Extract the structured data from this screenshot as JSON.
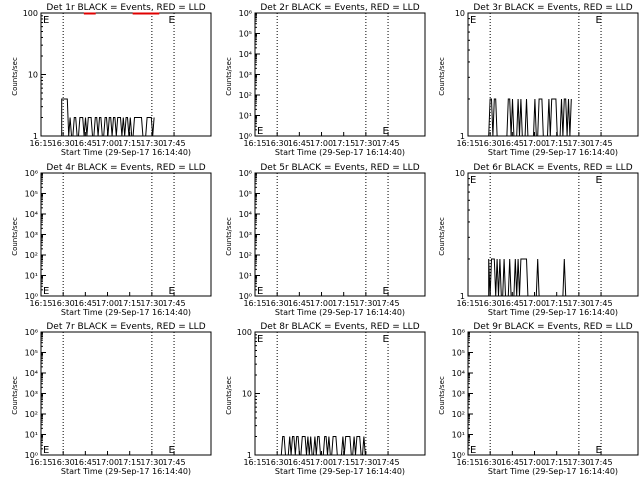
{
  "panel_title_suffix": "BLACK = Events, RED = LLD",
  "ylabel": "Counts/sec",
  "xlabel": "Start Time (29-Sep-17 16:14:40)",
  "x_tick_labels": [
    "16:15",
    "16:30",
    "16:45",
    "17:00",
    "17:15",
    "17:30",
    "17:45"
  ],
  "marker_char": "E",
  "colors": {
    "events": "#000000",
    "lld": "#e00000",
    "axis": "#000000"
  },
  "chart_data": [
    {
      "type": "line",
      "title": "Det 1r",
      "scale": "log",
      "ylim": [
        1,
        100
      ],
      "y_tick_labels": [
        "1",
        "10",
        "100"
      ],
      "dotted_x": [
        "16:30",
        "17:30",
        "17:45"
      ],
      "markers_y": [
        100,
        100
      ],
      "series": [
        {
          "role": "events",
          "style": "spiky",
          "x_start": "16:29",
          "x_end": "17:32",
          "base": 1,
          "level": 2,
          "peak": 4,
          "density": 0.5
        },
        {
          "role": "lld",
          "segments": [
            {
              "from": "16:44",
              "to": "16:52",
              "y": 100
            },
            {
              "from": "17:17",
              "to": "17:35",
              "y": 100
            }
          ]
        }
      ]
    },
    {
      "type": "line",
      "title": "Det 2r",
      "scale": "log",
      "ylim": [
        1,
        1000000
      ],
      "y_tick_labels": [
        "10⁰",
        "10¹",
        "10²",
        "10³",
        "10⁴",
        "10⁵",
        "10⁶"
      ],
      "dotted_x": [
        "16:30",
        "17:30",
        "17:45"
      ],
      "markers_y": [
        1.5,
        1.5
      ],
      "series": []
    },
    {
      "type": "line",
      "title": "Det 3r",
      "scale": "log",
      "ylim": [
        1,
        10
      ],
      "y_tick_labels": [
        "1",
        "10"
      ],
      "dotted_x": [
        "16:30",
        "17:30",
        "17:45"
      ],
      "markers_y": [
        10,
        10
      ],
      "series": [
        {
          "role": "events",
          "style": "sparse",
          "x_start": "16:29",
          "x_end": "17:25",
          "base": 1,
          "level": 2,
          "density": 0.35
        }
      ]
    },
    {
      "type": "line",
      "title": "Det 4r",
      "scale": "log",
      "ylim": [
        1,
        1000000
      ],
      "y_tick_labels": [
        "10⁰",
        "10¹",
        "10²",
        "10³",
        "10⁴",
        "10⁵",
        "10⁶"
      ],
      "dotted_x": [
        "16:30",
        "17:30",
        "17:45"
      ],
      "markers_y": [
        1.5,
        1.5
      ],
      "series": []
    },
    {
      "type": "line",
      "title": "Det 5r",
      "scale": "log",
      "ylim": [
        1,
        1000000
      ],
      "y_tick_labels": [
        "10⁰",
        "10¹",
        "10²",
        "10³",
        "10⁴",
        "10⁵",
        "10⁶"
      ],
      "dotted_x": [
        "16:30",
        "17:30",
        "17:45"
      ],
      "markers_y": [
        1.5,
        1.5
      ],
      "series": []
    },
    {
      "type": "line",
      "title": "Det 6r",
      "scale": "log",
      "ylim": [
        1,
        10
      ],
      "y_tick_labels": [
        "1",
        "10"
      ],
      "dotted_x": [
        "16:30",
        "17:30",
        "17:45"
      ],
      "markers_y": [
        10,
        10
      ],
      "series": [
        {
          "role": "events",
          "style": "sparse",
          "x_start": "16:29",
          "x_end": "17:25",
          "base": 1,
          "level": 2,
          "density": 0.35
        }
      ]
    },
    {
      "type": "line",
      "title": "Det 7r",
      "scale": "log",
      "ylim": [
        1,
        1000000
      ],
      "y_tick_labels": [
        "10⁰",
        "10¹",
        "10²",
        "10³",
        "10⁴",
        "10⁵",
        "10⁶"
      ],
      "dotted_x": [
        "16:30",
        "17:30",
        "17:45"
      ],
      "markers_y": [
        1.5,
        1.5
      ],
      "series": []
    },
    {
      "type": "line",
      "title": "Det 8r",
      "scale": "log",
      "ylim": [
        1,
        100
      ],
      "y_tick_labels": [
        "1",
        "10",
        "100"
      ],
      "dotted_x": [
        "16:30",
        "17:30",
        "17:45"
      ],
      "markers_y": [
        100,
        100
      ],
      "series": [
        {
          "role": "events",
          "style": "sparse",
          "x_start": "16:29",
          "x_end": "17:30",
          "base": 1,
          "level": 2,
          "density": 0.4
        }
      ]
    },
    {
      "type": "line",
      "title": "Det 9r",
      "scale": "log",
      "ylim": [
        1,
        1000000
      ],
      "y_tick_labels": [
        "10⁰",
        "10¹",
        "10²",
        "10³",
        "10⁴",
        "10⁵",
        "10⁶"
      ],
      "dotted_x": [
        "16:30",
        "17:30",
        "17:45"
      ],
      "markers_y": [
        1.5,
        1.5
      ],
      "series": []
    }
  ]
}
